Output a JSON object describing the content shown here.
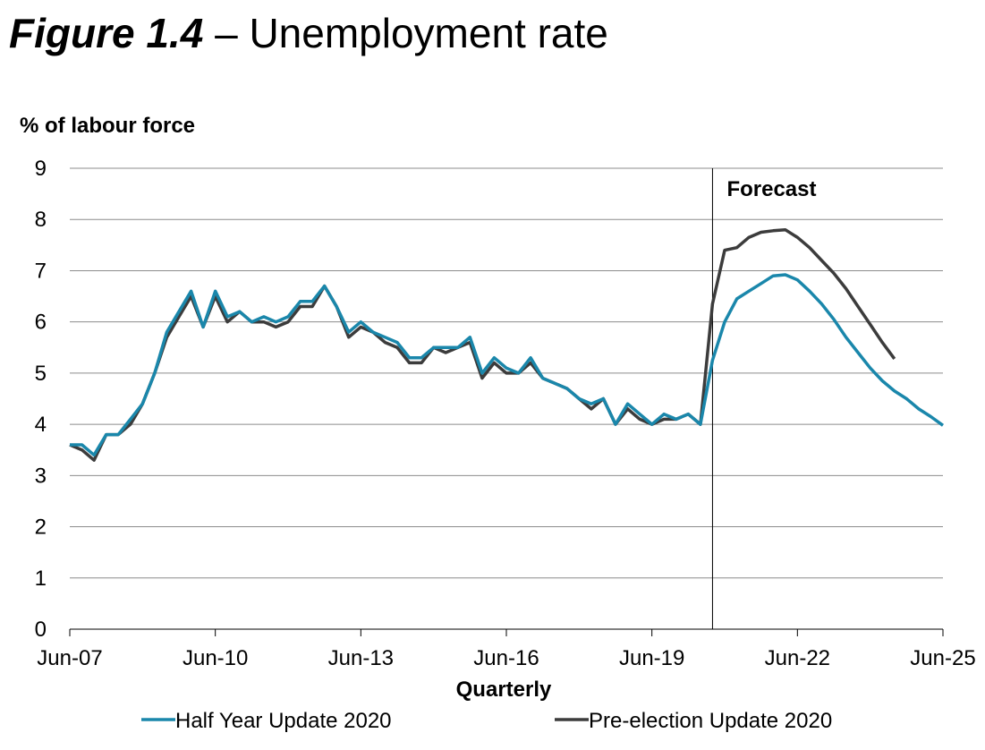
{
  "figure": {
    "label": "Figure 1.4",
    "dash": " – ",
    "name": "Unemployment rate"
  },
  "chart_data": {
    "type": "line",
    "ylabel": "% of labour force",
    "xlabel": "Quarterly",
    "ylim": [
      0,
      9
    ],
    "yticks": [
      0,
      1,
      2,
      3,
      4,
      5,
      6,
      7,
      8,
      9
    ],
    "x_tick_labels": [
      "Jun-07",
      "Jun-10",
      "Jun-13",
      "Jun-16",
      "Jun-19",
      "Jun-22",
      "Jun-25"
    ],
    "x_start": "Jun-07",
    "x_end": "Jun-25",
    "grid": true,
    "annotation": {
      "text": "Forecast",
      "at_quarter": "Sep-20"
    },
    "legend_position": "bottom",
    "series": [
      {
        "name": "Half Year Update 2020",
        "color": "#1a87ab",
        "values": [
          3.6,
          3.6,
          3.4,
          3.8,
          3.8,
          4.1,
          4.4,
          5.0,
          5.8,
          6.2,
          6.6,
          5.9,
          6.6,
          6.1,
          6.2,
          6.0,
          6.1,
          6.0,
          6.1,
          6.4,
          6.4,
          6.7,
          6.3,
          5.8,
          6.0,
          5.8,
          5.7,
          5.6,
          5.3,
          5.3,
          5.5,
          5.5,
          5.5,
          5.7,
          5.0,
          5.3,
          5.1,
          5.0,
          5.3,
          4.9,
          4.8,
          4.7,
          4.5,
          4.4,
          4.5,
          4.0,
          4.4,
          4.2,
          4.0,
          4.2,
          4.1,
          4.2,
          4.0,
          5.25,
          6.0,
          6.45,
          6.6,
          6.75,
          6.9,
          6.92,
          6.82,
          6.6,
          6.35,
          6.05,
          5.7,
          5.4,
          5.1,
          4.85,
          4.65,
          4.5,
          4.3,
          4.15,
          3.98
        ]
      },
      {
        "name": "Pre-election Update 2020",
        "color": "#3c3c3c",
        "values": [
          3.6,
          3.5,
          3.3,
          3.8,
          3.8,
          4.0,
          4.4,
          5.0,
          5.7,
          6.1,
          6.5,
          5.9,
          6.5,
          6.0,
          6.2,
          6.0,
          6.0,
          5.9,
          6.0,
          6.3,
          6.3,
          6.7,
          6.3,
          5.7,
          5.9,
          5.8,
          5.6,
          5.5,
          5.2,
          5.2,
          5.5,
          5.4,
          5.5,
          5.6,
          4.9,
          5.2,
          5.0,
          5.0,
          5.2,
          4.9,
          4.8,
          4.7,
          4.5,
          4.3,
          4.5,
          4.0,
          4.3,
          4.1,
          4.0,
          4.1,
          4.1,
          4.2,
          4.0,
          6.35,
          7.4,
          7.45,
          7.65,
          7.75,
          7.78,
          7.8,
          7.65,
          7.45,
          7.2,
          6.95,
          6.65,
          6.3,
          5.95,
          5.6,
          5.28
        ]
      }
    ]
  }
}
